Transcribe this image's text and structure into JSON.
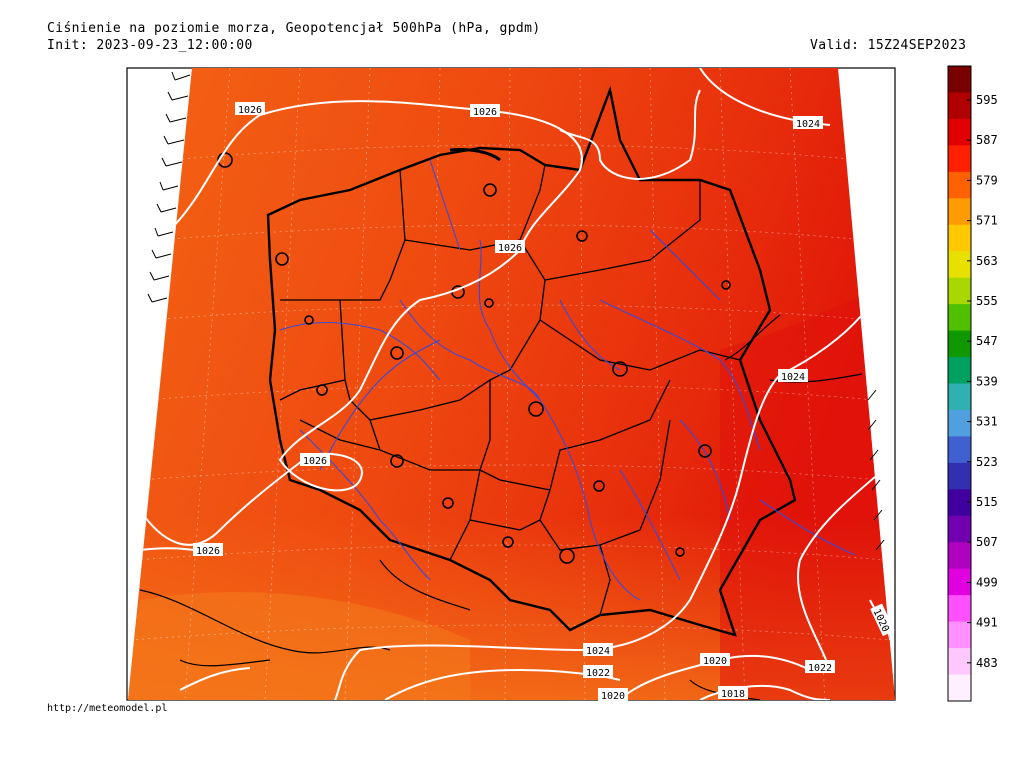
{
  "header": {
    "title": "Ciśnienie na poziomie morza, Geopotencjał 500hPa (hPa, gpdm)",
    "init": "Init: 2023-09-23_12:00:00",
    "valid": "Valid: 15Z24SEP2023"
  },
  "footer": {
    "url": "http://meteomodel.pl"
  },
  "colorbar": {
    "labels": [
      "595",
      "587",
      "579",
      "571",
      "563",
      "555",
      "547",
      "539",
      "531",
      "523",
      "515",
      "507",
      "499",
      "491",
      "483"
    ],
    "colors": [
      "#7a0000",
      "#b00000",
      "#e00000",
      "#ff2000",
      "#ff6000",
      "#ff9a00",
      "#ffc800",
      "#e8e000",
      "#a8d800",
      "#50c000",
      "#109800",
      "#00a060",
      "#30b0b0",
      "#50a0e0",
      "#4060d0",
      "#3030b0",
      "#4000a0",
      "#7000b0",
      "#b000c0",
      "#e000e0",
      "#ff50ff",
      "#ff90ff",
      "#ffc8ff",
      "#fff0ff"
    ]
  },
  "map": {
    "isobar_labels": [
      "1026",
      "1026",
      "1024",
      "1026",
      "1024",
      "1026",
      "1026",
      "1024",
      "1022",
      "1020",
      "1022",
      "1020",
      "1018",
      "1020"
    ],
    "fill_colors": {
      "west": "#f25a10",
      "mid": "#ee4410",
      "east": "#e41e0a",
      "southwest": "#f47418"
    }
  }
}
